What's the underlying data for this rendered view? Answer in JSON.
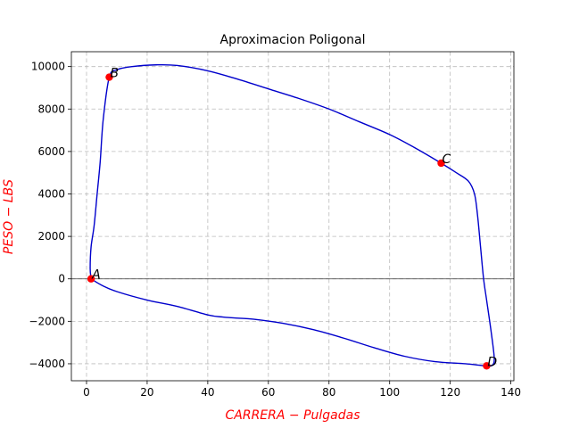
{
  "chart_data": {
    "type": "line",
    "title": "Aproximacion Poligonal",
    "xlabel": "CARRERA − Pulgadas",
    "ylabel": "PESO − LBS",
    "label_color": "#ff0000",
    "curve_color": "#0000cc",
    "point_color": "#ff0000",
    "zero_line_color": "#000000",
    "grid": true,
    "xlim": [
      -5,
      141
    ],
    "ylim": [
      -4800,
      10700
    ],
    "xticks": [
      0,
      20,
      40,
      60,
      80,
      100,
      120,
      140
    ],
    "yticks": [
      -4000,
      -2000,
      0,
      2000,
      4000,
      6000,
      8000,
      10000
    ],
    "xtick_labels": [
      "0",
      "20",
      "40",
      "60",
      "80",
      "100",
      "120",
      "140"
    ],
    "ytick_labels": [
      "−4000",
      "−2000",
      "0",
      "2000",
      "4000",
      "6000",
      "8000",
      "10000"
    ],
    "series": [
      {
        "x": [
          1.5,
          1.2,
          1.5,
          2.5,
          3.5,
          4.5,
          5.5,
          7.5,
          10,
          15,
          23,
          30,
          40,
          50,
          60,
          70,
          80,
          90,
          100,
          108,
          117,
          122,
          126,
          128,
          129,
          130,
          131,
          132,
          133.5,
          134.5,
          134,
          132,
          125,
          115,
          105,
          95,
          85,
          75,
          65,
          55,
          50,
          45,
          40,
          30,
          20,
          10,
          5,
          1.5
        ],
        "y": [
          0,
          500,
          1500,
          2500,
          4000,
          5500,
          7500,
          9500,
          9850,
          10000,
          10080,
          10050,
          9800,
          9400,
          8950,
          8500,
          8000,
          7400,
          6800,
          6200,
          5450,
          5000,
          4600,
          4000,
          3000,
          1500,
          0,
          -1000,
          -2500,
          -3700,
          -4050,
          -4100,
          -4000,
          -3900,
          -3650,
          -3250,
          -2800,
          -2400,
          -2100,
          -1900,
          -1850,
          -1800,
          -1700,
          -1300,
          -1000,
          -600,
          -300,
          0
        ]
      }
    ],
    "points": [
      {
        "name": "A",
        "x": 1.5,
        "y": 0
      },
      {
        "name": "B",
        "x": 7.5,
        "y": 9500
      },
      {
        "name": "C",
        "x": 117,
        "y": 5450
      },
      {
        "name": "D",
        "x": 132,
        "y": -4100
      }
    ]
  }
}
